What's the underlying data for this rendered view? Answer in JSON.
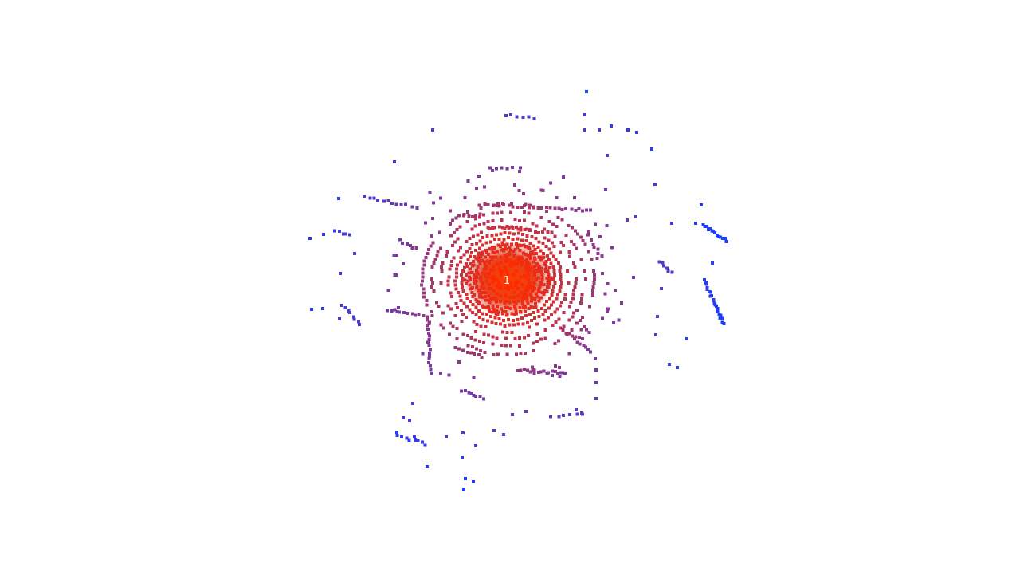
{
  "viewer": {
    "background": "#ffffff",
    "center_marker_label": "1",
    "color_near": "#ff2a00",
    "color_mid": "#8a3a8c",
    "color_far": "#1a3dff"
  },
  "icons": {
    "ego_marker": "ego-vehicle-marker-icon"
  }
}
